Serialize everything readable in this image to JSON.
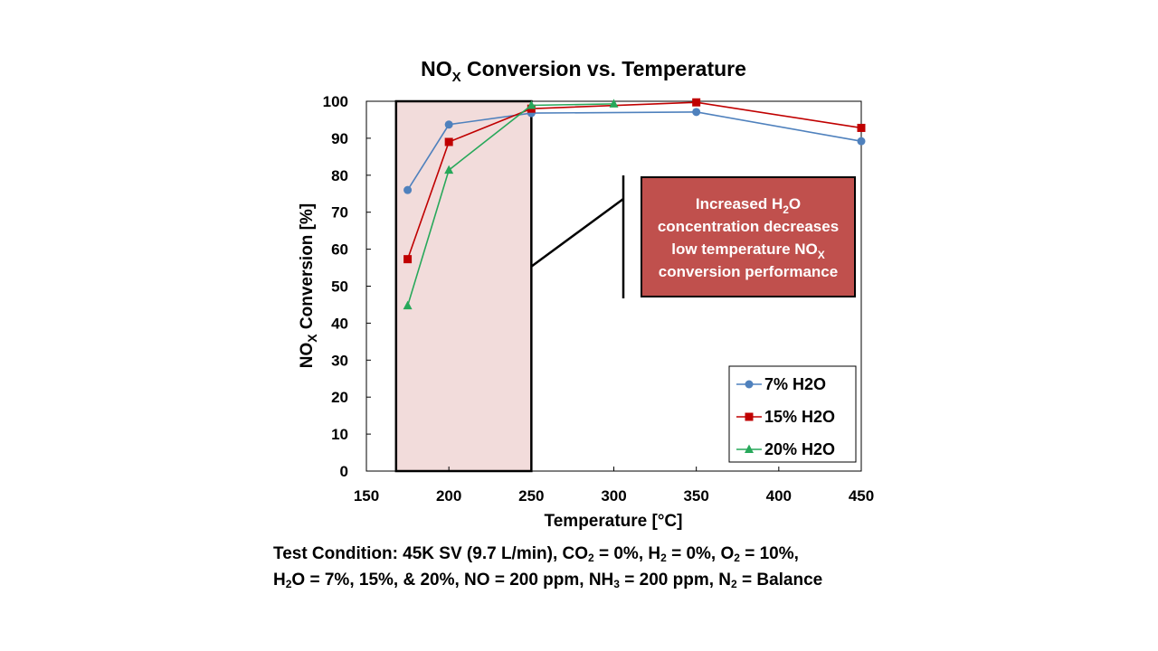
{
  "chart_data": {
    "type": "line",
    "title": {
      "main": "NO",
      "sub": "X",
      "rest": " Conversion vs. Temperature"
    },
    "xlabel": "Temperature [°C]",
    "ylabel": {
      "main": "NO",
      "sub": "X",
      "rest": " Conversion [%]"
    },
    "xlim": [
      150,
      450
    ],
    "ylim": [
      0,
      100
    ],
    "xticks": [
      150,
      200,
      250,
      300,
      350,
      400,
      450
    ],
    "yticks": [
      0,
      10,
      20,
      30,
      40,
      50,
      60,
      70,
      80,
      90,
      100
    ],
    "highlight_region": {
      "x_from": 168,
      "x_to": 250,
      "color": "#f2dcdb"
    },
    "series": [
      {
        "name": "7% H2O",
        "color": "#4f81bd",
        "marker": "circle",
        "x": [
          175,
          200,
          250,
          350,
          450
        ],
        "y": [
          76,
          93.7,
          96.8,
          97.1,
          89.2
        ]
      },
      {
        "name": "15% H2O",
        "color": "#c00000",
        "marker": "square",
        "x": [
          175,
          200,
          250,
          350,
          450
        ],
        "y": [
          57.3,
          89,
          98,
          99.7,
          92.8
        ]
      },
      {
        "name": "20% H2O",
        "color": "#27a85a",
        "marker": "triangle",
        "x": [
          175,
          200,
          250,
          300
        ],
        "y": [
          44.7,
          81.4,
          98.9,
          99.3
        ]
      }
    ],
    "legend_position": "bottom-right",
    "annotation": {
      "bg_color": "#c0504d",
      "lines": [
        {
          "main": "Increased H",
          "sub": "2",
          "rest": "O"
        },
        {
          "main": "concentration decreases",
          "sub": "",
          "rest": ""
        },
        {
          "main": "low temperature NO",
          "sub": "X",
          "rest": ""
        },
        {
          "main": "conversion performance",
          "sub": "",
          "rest": ""
        }
      ]
    }
  },
  "footnote": {
    "line1": [
      {
        "t": "Test Condition: 45K SV (9.7 L/min), CO"
      },
      {
        "s": "2"
      },
      {
        "t": " = 0%, H"
      },
      {
        "s": "2"
      },
      {
        "t": " = 0%, O"
      },
      {
        "s": "2"
      },
      {
        "t": " = 10%,"
      }
    ],
    "line2": [
      {
        "t": "H"
      },
      {
        "s": "2"
      },
      {
        "t": "O = 7%, 15%, & 20%, NO = 200 ppm, NH"
      },
      {
        "s": "3"
      },
      {
        "t": " = 200 ppm, N"
      },
      {
        "s": "2"
      },
      {
        "t": " = Balance"
      }
    ]
  }
}
